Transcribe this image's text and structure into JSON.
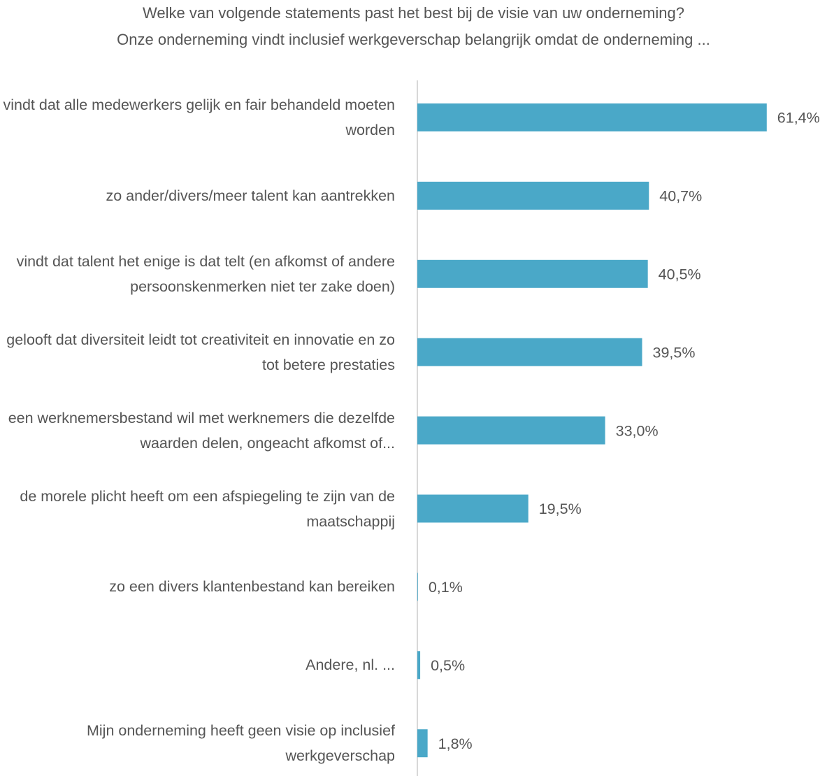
{
  "chart_data": {
    "type": "barh",
    "title": "Welke van volgende statements past het best bij de visie van uw onderneming?",
    "subtitle": "Onze onderneming vindt inclusief werkgeverschap belangrijk omdat de onderneming ...",
    "categories": [
      "vindt dat alle medewerkers gelijk en fair behandeld moeten worden",
      "zo ander/divers/meer talent kan aantrekken",
      "vindt dat talent het enige is dat telt (en afkomst of andere persoonskenmerken niet ter zake doen)",
      "gelooft dat diversiteit leidt tot creativiteit en innovatie en zo tot betere prestaties",
      "een werknemersbestand wil met werknemers die dezelfde waarden delen, ongeacht afkomst of...",
      "de morele plicht heeft om een afspiegeling te zijn van de maatschappij",
      "zo een divers klantenbestand kan bereiken",
      "Andere, nl. ...",
      "Mijn onderneming heeft geen visie op inclusief werkgeverschap"
    ],
    "values": [
      61.4,
      40.7,
      40.5,
      39.5,
      33.0,
      19.5,
      0.1,
      0.5,
      1.8
    ],
    "value_labels": [
      "61,4%",
      "40,7%",
      "40,5%",
      "39,5%",
      "33,0%",
      "19,5%",
      "0,1%",
      "0,5%",
      "1,8%"
    ],
    "color": "#4aa8c8"
  }
}
